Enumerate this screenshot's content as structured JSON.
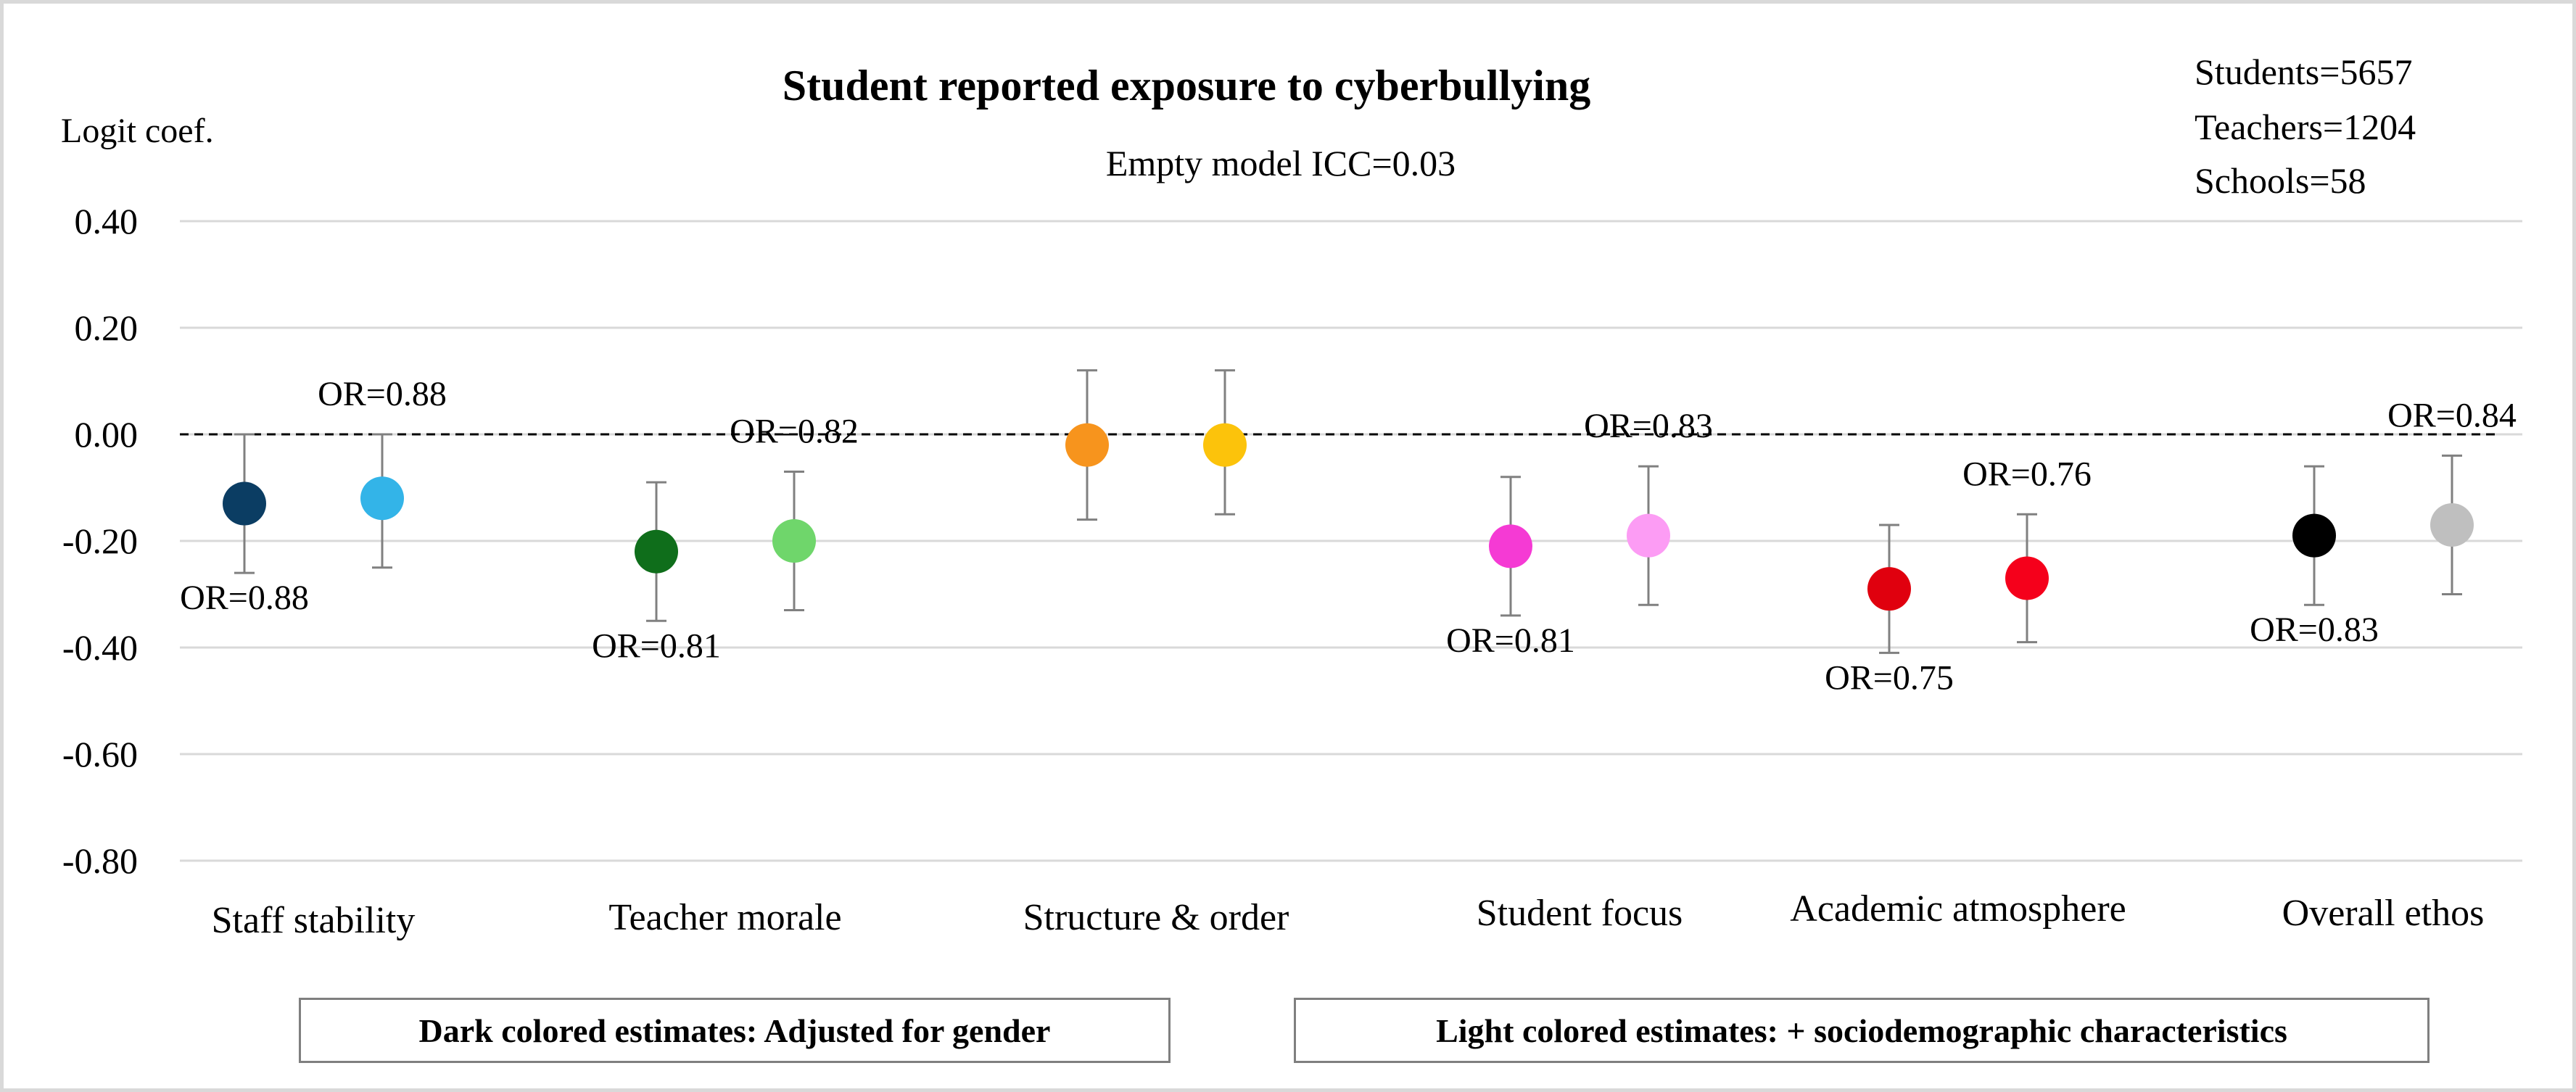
{
  "chart_data": {
    "type": "scatter",
    "title": "Student reported exposure to cyberbullying",
    "subtitle": "Empty model ICC=0.03",
    "ylabel": "Logit coef.",
    "ylim": [
      -0.8,
      0.4
    ],
    "ytick_labels": [
      "0.40",
      "0.20",
      "0.00",
      "-0.20",
      "-0.40",
      "-0.60",
      "-0.80"
    ],
    "yticks": [
      0.4,
      0.2,
      0.0,
      -0.2,
      -0.4,
      -0.6,
      -0.8
    ],
    "grid": true,
    "reference_line": 0.0,
    "sample_info": [
      "Students=5657",
      "Teachers=1204",
      "Schools=58"
    ],
    "categories": [
      "Staff stability",
      "Teacher morale",
      "Structure &  order",
      "Student focus",
      "Academic atmosphere",
      "Overall ethos"
    ],
    "series": [
      {
        "name": "Dark colored estimates: Adjusted for gender",
        "values": [
          -0.13,
          -0.22,
          -0.02,
          -0.21,
          -0.29,
          -0.19
        ],
        "lower": [
          -0.26,
          -0.35,
          -0.16,
          -0.34,
          -0.41,
          -0.32
        ],
        "upper": [
          0.0,
          -0.09,
          0.12,
          -0.08,
          -0.17,
          -0.06
        ],
        "colors": [
          "#0b3d63",
          "#0f6e1b",
          "#f7941d",
          "#f53ad4",
          "#e0000e",
          "#000000"
        ],
        "labels": [
          "OR=0.88",
          "OR=0.81",
          "",
          "OR=0.81",
          "OR=0.75",
          "OR=0.83"
        ],
        "label_positions": [
          "below",
          "below",
          "none",
          "below",
          "below",
          "below"
        ]
      },
      {
        "name": "Light colored estimates: + sociodemographic characteristics",
        "values": [
          -0.12,
          -0.2,
          -0.02,
          -0.19,
          -0.27,
          -0.17
        ],
        "lower": [
          -0.25,
          -0.33,
          -0.15,
          -0.32,
          -0.39,
          -0.3
        ],
        "upper": [
          0.0,
          -0.07,
          0.12,
          -0.06,
          -0.15,
          -0.04
        ],
        "colors": [
          "#33b4e8",
          "#6fd66b",
          "#fcc30b",
          "#fc9cf4",
          "#f5001b",
          "#bfbfbf"
        ],
        "labels": [
          "OR=0.88",
          "OR=0.82",
          "",
          "OR=0.83",
          "OR=0.76",
          "OR=0.84"
        ],
        "label_positions": [
          "above",
          "above",
          "none",
          "above",
          "above",
          "above"
        ]
      }
    ],
    "legend": [
      "Dark colored estimates: Adjusted for gender",
      "Light colored estimates: + sociodemographic characteristics"
    ]
  }
}
